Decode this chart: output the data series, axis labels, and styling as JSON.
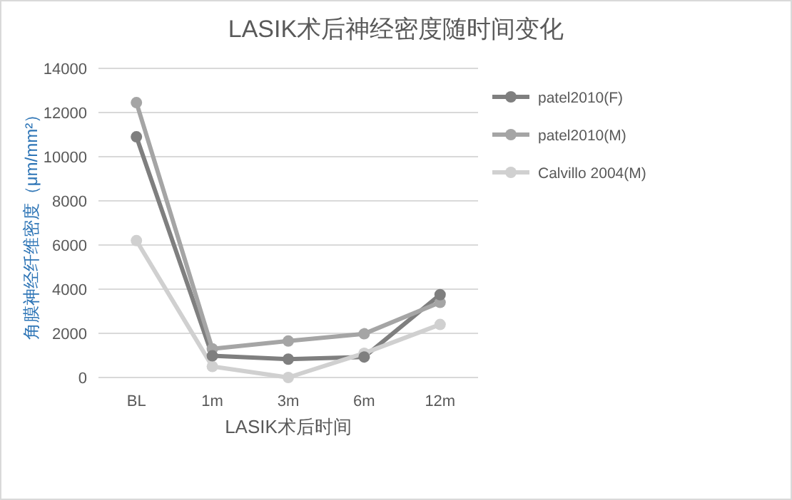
{
  "chart_data": {
    "type": "line",
    "title": "LASIK术后神经密度随时间变化",
    "xlabel": "LASIK术后时间",
    "ylabel": "角膜神经纤维密度（μm/mm²）",
    "categories": [
      "BL",
      "1m",
      "3m",
      "6m",
      "12m"
    ],
    "series": [
      {
        "name": "patel2010(F)",
        "color": "#7f7f7f",
        "values": [
          10900,
          980,
          830,
          930,
          3750
        ]
      },
      {
        "name": "patel2010(M)",
        "color": "#a5a5a5",
        "values": [
          12450,
          1300,
          1650,
          1980,
          3400
        ]
      },
      {
        "name": "Calvillo 2004(M)",
        "color": "#d0d0d0",
        "values": [
          6200,
          500,
          0,
          1100,
          2400
        ]
      }
    ],
    "ylim": [
      0,
      14000
    ],
    "yticks": [
      0,
      2000,
      4000,
      6000,
      8000,
      10000,
      12000,
      14000
    ],
    "grid": "y",
    "legend": "right",
    "marker": "circle",
    "line_style": "solid"
  }
}
